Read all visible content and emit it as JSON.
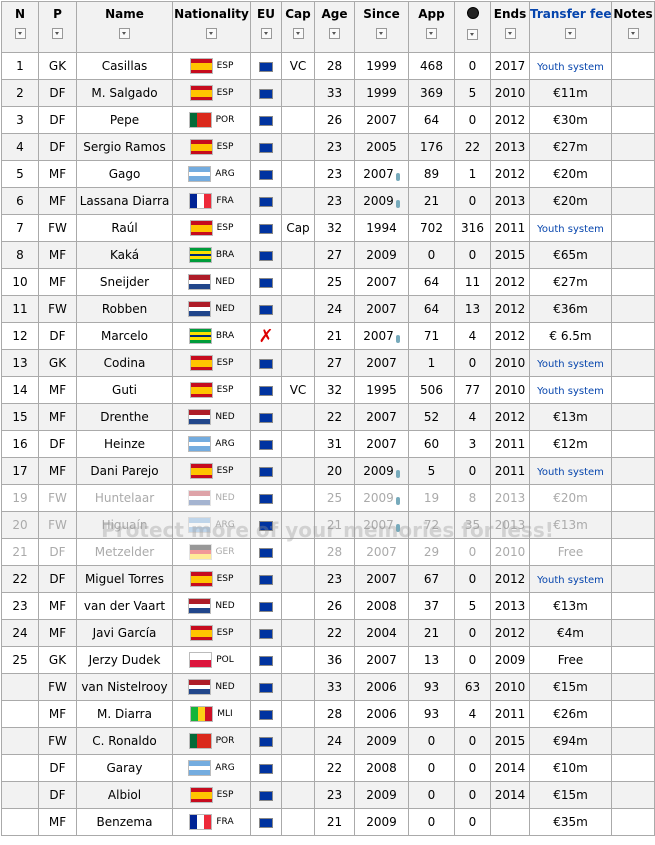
{
  "table": {
    "headers": [
      "N",
      "P",
      "Name",
      "Nationality",
      "EU",
      "Cap",
      "Age",
      "Since",
      "App",
      null,
      "Ends",
      "Transfer fee",
      "Notes"
    ],
    "rows": [
      {
        "n": 1,
        "pos": "GK",
        "name": "Casillas",
        "nat": "ESP",
        "flag": [
          "#c60b1e",
          "#ffc400",
          "#ffc400",
          "#c60b1e"
        ],
        "eu": true,
        "cap": "VC",
        "age": 28,
        "since": 1999,
        "app": 468,
        "goals": 0,
        "ends": 2017,
        "fee": "Youth system"
      },
      {
        "n": 2,
        "pos": "DF",
        "name": "M. Salgado",
        "nat": "ESP",
        "flag": [
          "#c60b1e",
          "#ffc400",
          "#ffc400",
          "#c60b1e"
        ],
        "eu": true,
        "age": 33,
        "since": 1999,
        "app": 369,
        "goals": 5,
        "ends": 2010,
        "fee": "€11m"
      },
      {
        "n": 3,
        "pos": "DF",
        "name": "Pepe",
        "nat": "POR",
        "flag": [
          "#046a38",
          "#da291c",
          "#da291c"
        ],
        "flag_vertical": true,
        "eu": true,
        "age": 26,
        "since": 2007,
        "app": 64,
        "goals": 0,
        "ends": 2012,
        "fee": "€30m"
      },
      {
        "n": 4,
        "pos": "DF",
        "name": "Sergio Ramos",
        "nat": "ESP",
        "flag": [
          "#c60b1e",
          "#ffc400",
          "#ffc400",
          "#c60b1e"
        ],
        "eu": true,
        "age": 23,
        "since": 2005,
        "app": 176,
        "goals": 22,
        "ends": 2013,
        "fee": "€27m"
      },
      {
        "n": 5,
        "pos": "MF",
        "name": "Gago",
        "nat": "ARG",
        "flag": [
          "#74acdf",
          "#ffffff",
          "#74acdf"
        ],
        "eu": true,
        "age": 23,
        "since": 2007,
        "since_icon": true,
        "app": 89,
        "goals": 1,
        "ends": 2012,
        "fee": "€20m"
      },
      {
        "n": 6,
        "pos": "MF",
        "name": "Lassana Diarra",
        "nat": "FRA",
        "flag": [
          "#002395",
          "#ffffff",
          "#ed2939"
        ],
        "flag_vertical": true,
        "eu": true,
        "age": 23,
        "since": 2009,
        "since_icon": true,
        "app": 21,
        "goals": 0,
        "ends": 2013,
        "fee": "€20m"
      },
      {
        "n": 7,
        "pos": "FW",
        "name": "Raúl",
        "nat": "ESP",
        "flag": [
          "#c60b1e",
          "#ffc400",
          "#ffc400",
          "#c60b1e"
        ],
        "eu": true,
        "cap": "Cap",
        "age": 32,
        "since": 1994,
        "app": 702,
        "goals": 316,
        "ends": 2011,
        "fee": "Youth system"
      },
      {
        "n": 8,
        "pos": "MF",
        "name": "Kaká",
        "nat": "BRA",
        "flag": [
          "#009c3b",
          "#ffdf00",
          "#002776",
          "#ffdf00",
          "#009c3b"
        ],
        "eu": true,
        "age": 27,
        "since": 2009,
        "app": 0,
        "goals": 0,
        "ends": 2015,
        "fee": "€65m"
      },
      {
        "n": 10,
        "pos": "MF",
        "name": "Sneijder",
        "nat": "NED",
        "flag": [
          "#ae1c28",
          "#ffffff",
          "#21468b"
        ],
        "eu": true,
        "age": 25,
        "since": 2007,
        "app": 64,
        "goals": 11,
        "ends": 2012,
        "fee": "€27m"
      },
      {
        "n": 11,
        "pos": "FW",
        "name": "Robben",
        "nat": "NED",
        "flag": [
          "#ae1c28",
          "#ffffff",
          "#21468b"
        ],
        "eu": true,
        "age": 24,
        "since": 2007,
        "app": 64,
        "goals": 13,
        "ends": 2012,
        "fee": "€36m"
      },
      {
        "n": 12,
        "pos": "DF",
        "name": "Marcelo",
        "nat": "BRA",
        "flag": [
          "#009c3b",
          "#ffdf00",
          "#002776",
          "#ffdf00",
          "#009c3b"
        ],
        "eu": "✗",
        "age": 21,
        "since": 2007,
        "since_icon": true,
        "app": 71,
        "goals": 4,
        "ends": 2012,
        "fee": "€ 6.5m"
      },
      {
        "n": 13,
        "pos": "GK",
        "name": "Codina",
        "nat": "ESP",
        "flag": [
          "#c60b1e",
          "#ffc400",
          "#ffc400",
          "#c60b1e"
        ],
        "eu": true,
        "age": 27,
        "since": 2007,
        "app": 1,
        "goals": 0,
        "ends": 2010,
        "fee": "Youth system"
      },
      {
        "n": 14,
        "pos": "MF",
        "name": "Guti",
        "nat": "ESP",
        "flag": [
          "#c60b1e",
          "#ffc400",
          "#ffc400",
          "#c60b1e"
        ],
        "eu": true,
        "cap": "VC",
        "age": 32,
        "since": 1995,
        "app": 506,
        "goals": 77,
        "ends": 2010,
        "fee": "Youth system"
      },
      {
        "n": 15,
        "pos": "MF",
        "name": "Drenthe",
        "nat": "NED",
        "flag": [
          "#ae1c28",
          "#ffffff",
          "#21468b"
        ],
        "eu": true,
        "age": 22,
        "since": 2007,
        "app": 52,
        "goals": 4,
        "ends": 2012,
        "fee": "€13m"
      },
      {
        "n": 16,
        "pos": "DF",
        "name": "Heinze",
        "nat": "ARG",
        "flag": [
          "#74acdf",
          "#ffffff",
          "#74acdf"
        ],
        "eu": true,
        "age": 31,
        "since": 2007,
        "app": 60,
        "goals": 3,
        "ends": 2011,
        "fee": "€12m"
      },
      {
        "n": 17,
        "pos": "MF",
        "name": "Dani Parejo",
        "nat": "ESP",
        "flag": [
          "#c60b1e",
          "#ffc400",
          "#ffc400",
          "#c60b1e"
        ],
        "eu": true,
        "age": 20,
        "since": 2009,
        "since_icon": true,
        "app": 5,
        "goals": 0,
        "ends": 2011,
        "fee": "Youth system"
      },
      {
        "n": 19,
        "pos": "FW",
        "name": "Huntelaar",
        "nat": "NED",
        "flag": [
          "#ae1c28",
          "#ffffff",
          "#21468b"
        ],
        "eu": true,
        "age": 25,
        "since": 2009,
        "since_icon": true,
        "app": 19,
        "goals": 8,
        "ends": 2013,
        "fee": "€20m",
        "faded": true
      },
      {
        "n": 20,
        "pos": "FW",
        "name": "Higuaín",
        "nat": "ARG",
        "flag": [
          "#74acdf",
          "#ffffff",
          "#74acdf"
        ],
        "eu": true,
        "age": 21,
        "since": 2007,
        "since_icon": true,
        "app": 72,
        "goals": 35,
        "ends": 2013,
        "fee": "€13m",
        "faded": true
      },
      {
        "n": 21,
        "pos": "DF",
        "name": "Metzelder",
        "nat": "GER",
        "flag": [
          "#000000",
          "#dd0000",
          "#ffce00"
        ],
        "eu": true,
        "age": 28,
        "since": 2007,
        "app": 29,
        "goals": 0,
        "ends": 2010,
        "fee": "Free",
        "faded": true
      },
      {
        "n": 22,
        "pos": "DF",
        "name": "Miguel Torres",
        "nat": "ESP",
        "flag": [
          "#c60b1e",
          "#ffc400",
          "#ffc400",
          "#c60b1e"
        ],
        "eu": true,
        "age": 23,
        "since": 2007,
        "app": 67,
        "goals": 0,
        "ends": 2012,
        "fee": "Youth system"
      },
      {
        "n": 23,
        "pos": "MF",
        "name": "van der Vaart",
        "nat": "NED",
        "flag": [
          "#ae1c28",
          "#ffffff",
          "#21468b"
        ],
        "eu": true,
        "age": 26,
        "since": 2008,
        "app": 37,
        "goals": 5,
        "ends": 2013,
        "fee": "€13m"
      },
      {
        "n": 24,
        "pos": "MF",
        "name": "Javi García",
        "nat": "ESP",
        "flag": [
          "#c60b1e",
          "#ffc400",
          "#ffc400",
          "#c60b1e"
        ],
        "eu": true,
        "age": 22,
        "since": 2004,
        "app": 21,
        "goals": 0,
        "ends": 2012,
        "fee": "€4m"
      },
      {
        "n": 25,
        "pos": "GK",
        "name": "Jerzy Dudek",
        "nat": "POL",
        "flag": [
          "#ffffff",
          "#dc143c"
        ],
        "eu": true,
        "age": 36,
        "since": 2007,
        "app": 13,
        "goals": 0,
        "ends": 2009,
        "fee": "Free"
      },
      {
        "n": null,
        "pos": "FW",
        "name": "van Nistelrooy",
        "nat": "NED",
        "flag": [
          "#ae1c28",
          "#ffffff",
          "#21468b"
        ],
        "eu": true,
        "age": 33,
        "since": 2006,
        "app": 93,
        "goals": 63,
        "ends": 2010,
        "fee": "€15m"
      },
      {
        "n": null,
        "pos": "MF",
        "name": "M. Diarra",
        "nat": "MLI",
        "flag": [
          "#14b53a",
          "#fcd116",
          "#ce1126"
        ],
        "flag_vertical": true,
        "eu": true,
        "age": 28,
        "since": 2006,
        "app": 93,
        "goals": 4,
        "ends": 2011,
        "fee": "€26m"
      },
      {
        "n": null,
        "pos": "FW",
        "name": "C. Ronaldo",
        "nat": "POR",
        "flag": [
          "#046a38",
          "#da291c",
          "#da291c"
        ],
        "flag_vertical": true,
        "eu": true,
        "age": 24,
        "since": 2009,
        "app": 0,
        "goals": 0,
        "ends": 2015,
        "fee": "€94m"
      },
      {
        "n": null,
        "pos": "DF",
        "name": "Garay",
        "nat": "ARG",
        "flag": [
          "#74acdf",
          "#ffffff",
          "#74acdf"
        ],
        "eu": true,
        "age": 22,
        "since": 2008,
        "app": 0,
        "goals": 0,
        "ends": 2014,
        "fee": "€10m"
      },
      {
        "n": null,
        "pos": "DF",
        "name": "Albiol",
        "nat": "ESP",
        "flag": [
          "#c60b1e",
          "#ffc400",
          "#ffc400",
          "#c60b1e"
        ],
        "eu": true,
        "age": 23,
        "since": 2009,
        "app": 0,
        "goals": 0,
        "ends": 2014,
        "fee": "€15m"
      },
      {
        "n": null,
        "pos": "MF",
        "name": "Benzema",
        "nat": "FRA",
        "flag": [
          "#002395",
          "#ffffff",
          "#ed2939"
        ],
        "flag_vertical": true,
        "eu": true,
        "age": 21,
        "since": 2009,
        "app": 0,
        "goals": 0,
        "ends": null,
        "fee": "€35m"
      }
    ]
  },
  "watermark": "Protect more of your memories for less!"
}
